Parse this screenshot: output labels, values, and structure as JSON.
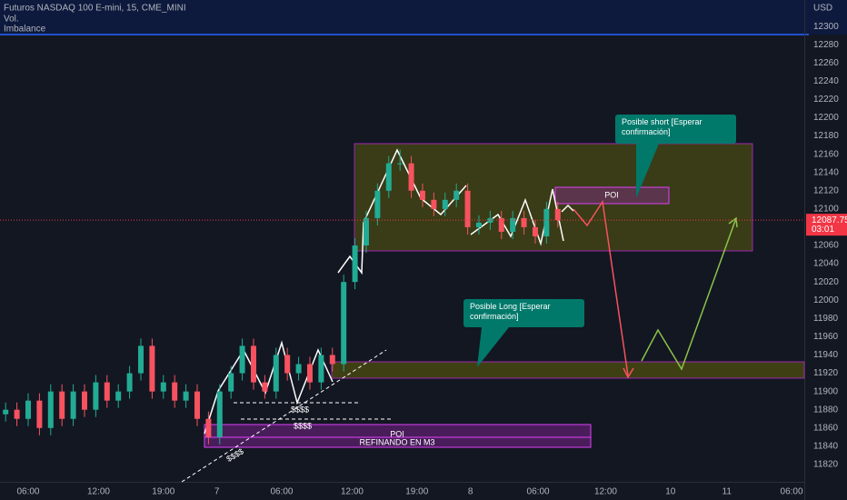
{
  "header": {
    "symbol": "Futuros NASDAQ 100 E-mini, 15, CME_MINI",
    "indicators": [
      "Vol.",
      "Imbalance"
    ],
    "currency": "USD"
  },
  "chart_data": {
    "type": "candlestick",
    "x": [
      2,
      6,
      10,
      14,
      18,
      22,
      26,
      30,
      34,
      38,
      42,
      46,
      50,
      54,
      58,
      62,
      66,
      70,
      74,
      78,
      82,
      86,
      90,
      94,
      98,
      102,
      106,
      110,
      114,
      118,
      122,
      126,
      130,
      134,
      138,
      142,
      146,
      150,
      154,
      158,
      162,
      166,
      170,
      174,
      178,
      182,
      186,
      190,
      194,
      198
    ],
    "open": [
      11875,
      11880,
      11870,
      11890,
      11860,
      11900,
      11870,
      11900,
      11880,
      11910,
      11890,
      11900,
      11920,
      11950,
      11900,
      11910,
      11890,
      11900,
      11870,
      11850,
      11900,
      11920,
      11950,
      11910,
      11900,
      11940,
      11920,
      11930,
      11910,
      11940,
      11930,
      12020,
      12060,
      12090,
      12120,
      12150,
      12150,
      12120,
      12110,
      12100,
      12110,
      12120,
      12080,
      12085,
      12090,
      12075,
      12090,
      12080,
      12070,
      12100
    ],
    "high": [
      11888,
      11888,
      11898,
      11898,
      11908,
      11908,
      11908,
      11908,
      11918,
      11918,
      11908,
      11928,
      11958,
      11958,
      11918,
      11918,
      11908,
      11908,
      11878,
      11908,
      11928,
      11958,
      11958,
      11918,
      11948,
      11948,
      11938,
      11938,
      11948,
      11948,
      12028,
      12068,
      12098,
      12128,
      12158,
      12165,
      12158,
      12128,
      12118,
      12118,
      12128,
      12128,
      12093,
      12098,
      12098,
      12098,
      12098,
      12088,
      12108,
      12108
    ],
    "low": [
      11867,
      11862,
      11862,
      11852,
      11852,
      11862,
      11862,
      11872,
      11872,
      11882,
      11882,
      11892,
      11912,
      11892,
      11892,
      11882,
      11882,
      11862,
      11842,
      11842,
      11892,
      11912,
      11902,
      11892,
      11892,
      11912,
      11912,
      11902,
      11902,
      11922,
      11922,
      12012,
      12052,
      12082,
      12112,
      12142,
      12112,
      12102,
      12092,
      12092,
      12102,
      12072,
      12072,
      12077,
      12067,
      12067,
      12072,
      12062,
      12062,
      12079.75
    ],
    "close": [
      11880,
      11870,
      11890,
      11860,
      11900,
      11870,
      11900,
      11880,
      11910,
      11890,
      11900,
      11920,
      11950,
      11900,
      11910,
      11890,
      11900,
      11870,
      11850,
      11900,
      11920,
      11950,
      11910,
      11900,
      11940,
      11920,
      11930,
      11910,
      11940,
      11930,
      12020,
      12060,
      12090,
      12120,
      12150,
      12150,
      12120,
      12110,
      12100,
      12110,
      12120,
      12080,
      12085,
      12090,
      12075,
      12090,
      12080,
      12070,
      12100,
      12087.75
    ],
    "up_color": "#22ab94",
    "down_color": "#f7525f",
    "xlim": [
      0,
      285.5
    ],
    "ylim": [
      11801,
      12329
    ],
    "xticks": [
      {
        "value": 10,
        "label": "06:00"
      },
      {
        "value": 35,
        "label": "12:00"
      },
      {
        "value": 58,
        "label": "19:00"
      },
      {
        "value": 77,
        "label": "7"
      },
      {
        "value": 100,
        "label": "06:00"
      },
      {
        "value": 125,
        "label": "12:00"
      },
      {
        "value": 148,
        "label": "19:00"
      },
      {
        "value": 167,
        "label": "8"
      },
      {
        "value": 191,
        "label": "06:00"
      },
      {
        "value": 215,
        "label": "12:00"
      },
      {
        "value": 238,
        "label": "10"
      },
      {
        "value": 258,
        "label": "11"
      },
      {
        "value": 281,
        "label": "06:00"
      }
    ],
    "yticks": [
      11820,
      11840,
      11860,
      11880,
      11900,
      11920,
      11940,
      11960,
      11980,
      12000,
      12020,
      12040,
      12060,
      12080,
      12100,
      12120,
      12140,
      12160,
      12180,
      12200,
      12220,
      12240,
      12260,
      12280,
      12300
    ],
    "grid": false,
    "last_price": 12087.75,
    "countdown": "03:01",
    "last_price_color": "#f23645"
  },
  "annotations": {
    "short_note": "Posible short [Esperar confirmación]",
    "long_note": "Posible Long [Esperar confirmación]",
    "poi_upper": "POI",
    "poi_lower": "POI",
    "refine": "REFINANDO EN M3",
    "liquidity": [
      "$$$$",
      "$$$$",
      "$$$$"
    ]
  }
}
